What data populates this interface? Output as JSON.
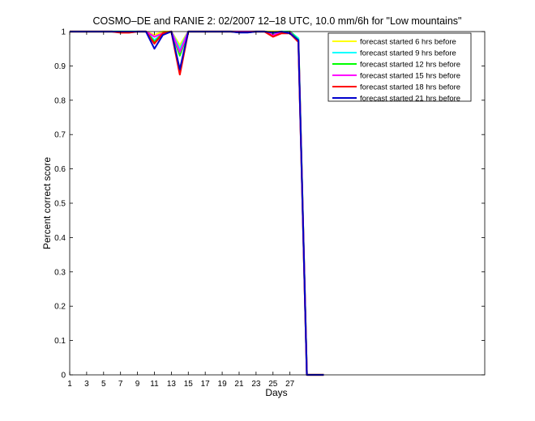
{
  "chart_data": {
    "type": "line",
    "title": "COSMO–DE and RANIE 2: 02/2007 12–18 UTC, 10.0 mm/6h for \"Low mountains\"",
    "xlabel": "Days",
    "ylabel": "Percent correct score",
    "xlim": [
      1,
      50
    ],
    "ylim": [
      0,
      1
    ],
    "xticks": [
      1,
      3,
      5,
      7,
      9,
      11,
      13,
      15,
      17,
      19,
      21,
      23,
      25,
      27
    ],
    "yticks": [
      0,
      0.1,
      0.2,
      0.3,
      0.4,
      0.5,
      0.6,
      0.7,
      0.8,
      0.9,
      1
    ],
    "ytick_labels": [
      "0",
      "0.1",
      "0.2",
      "0.3",
      "0.4",
      "0.5",
      "0.6",
      "0.7",
      "0.8",
      "0.9",
      "1"
    ],
    "grid": false,
    "legend_position": "top-right",
    "x": [
      1,
      2,
      3,
      4,
      5,
      6,
      7,
      8,
      9,
      10,
      11,
      12,
      13,
      14,
      15,
      16,
      17,
      18,
      19,
      20,
      21,
      22,
      23,
      24,
      25,
      26,
      27,
      28,
      29,
      30,
      31
    ],
    "series": [
      {
        "name": "forecast started 6 hrs before",
        "color": "#ffff00",
        "values": [
          1,
          1,
          1,
          1,
          1,
          1,
          1,
          1,
          1,
          1,
          0.99,
          1,
          1,
          0.96,
          1,
          1,
          1,
          1,
          1,
          1,
          1,
          1,
          1,
          1,
          1,
          1,
          1,
          0.98,
          0,
          0,
          0
        ]
      },
      {
        "name": "forecast started 9 hrs before",
        "color": "#00ffff",
        "values": [
          1,
          1,
          1,
          1,
          1,
          1,
          1,
          1,
          1,
          1,
          0.975,
          0.995,
          1,
          0.95,
          1,
          1,
          1,
          1,
          1,
          1,
          1,
          1,
          1,
          1,
          0.995,
          1,
          1,
          0.98,
          0,
          0,
          0
        ]
      },
      {
        "name": "forecast started 12 hrs before",
        "color": "#00ff00",
        "values": [
          1,
          1,
          1,
          1,
          1,
          1,
          1,
          1,
          1,
          1,
          0.97,
          0.995,
          1,
          0.93,
          1,
          1,
          1,
          1,
          1,
          1,
          1,
          1,
          1,
          1,
          0.995,
          0.998,
          1,
          0.975,
          0,
          0,
          0
        ]
      },
      {
        "name": "forecast started 15 hrs before",
        "color": "#ff00ff",
        "values": [
          1,
          1,
          1,
          1,
          1,
          1,
          0.998,
          0.998,
          1,
          1,
          0.985,
          0.995,
          1,
          0.94,
          1,
          1,
          1,
          1,
          1,
          1,
          1,
          1,
          1,
          1,
          0.99,
          0.998,
          0.998,
          0.97,
          0,
          0,
          0
        ]
      },
      {
        "name": "forecast started 18 hrs before",
        "color": "#ff0000",
        "values": [
          1,
          1,
          1,
          1,
          1,
          1,
          0.997,
          0.997,
          1,
          1,
          0.965,
          0.995,
          1,
          0.875,
          1,
          1,
          1,
          1,
          1,
          1,
          0.998,
          0.998,
          1,
          1,
          0.985,
          0.995,
          0.995,
          0.97,
          0,
          0,
          0
        ]
      },
      {
        "name": "forecast started 21 hrs before",
        "color": "#0000cc",
        "values": [
          1,
          1,
          1,
          1,
          1,
          1,
          1,
          1,
          1,
          1,
          0.95,
          0.99,
          1,
          0.89,
          1,
          1,
          1,
          1,
          1,
          1,
          0.997,
          0.997,
          1,
          1,
          0.997,
          1,
          0.995,
          0.975,
          0,
          0,
          0
        ]
      }
    ]
  }
}
